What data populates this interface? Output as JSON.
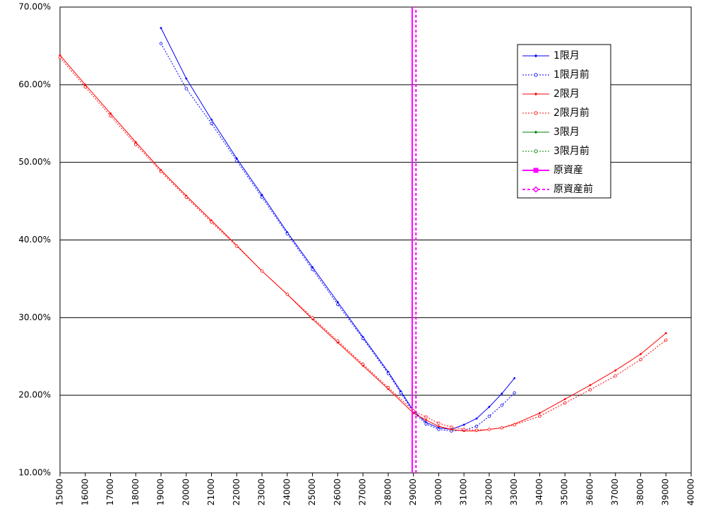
{
  "chart_data": {
    "type": "line",
    "xlim": [
      15000,
      40000
    ],
    "xticks": [
      15000,
      16000,
      17000,
      18000,
      19000,
      20000,
      21000,
      22000,
      23000,
      24000,
      25000,
      26000,
      27000,
      28000,
      29000,
      30000,
      31000,
      32000,
      33000,
      34000,
      35000,
      36000,
      37000,
      38000,
      39000,
      40000
    ],
    "ylim": [
      10,
      70
    ],
    "yticks": [
      {
        "value": 10,
        "label": "10.00%"
      },
      {
        "value": 20,
        "label": "20.00%"
      },
      {
        "value": 30,
        "label": "30.00%"
      },
      {
        "value": 40,
        "label": "40.00%"
      },
      {
        "value": 50,
        "label": "50.00%"
      },
      {
        "value": 60,
        "label": "60.00%"
      },
      {
        "value": 70,
        "label": "70.00%"
      }
    ],
    "grid": true,
    "legend": "upper right",
    "series": [
      {
        "name": "1限月",
        "color": "#0000ff",
        "dash": false,
        "marker": "diamond",
        "x": [
          19000,
          20000,
          21000,
          22000,
          23000,
          24000,
          25000,
          26000,
          27000,
          28000,
          28500,
          29000,
          29500,
          30000,
          30500,
          31000,
          31500,
          32000,
          32500,
          33000
        ],
        "values": [
          67.3,
          60.8,
          55.5,
          50.5,
          45.8,
          41.0,
          36.5,
          32.0,
          27.5,
          23.0,
          20.5,
          18.0,
          16.5,
          15.8,
          15.6,
          16.2,
          17.0,
          18.5,
          20.2,
          22.2
        ]
      },
      {
        "name": "1限月前",
        "color": "#0000ff",
        "dash": true,
        "marker": "circle",
        "x": [
          19000,
          20000,
          21000,
          22000,
          23000,
          24000,
          25000,
          26000,
          27000,
          28000,
          28500,
          29000,
          29500,
          30000,
          30500,
          31000,
          31500,
          32000,
          32500,
          33000
        ],
        "values": [
          65.3,
          59.5,
          55.0,
          50.2,
          45.5,
          40.8,
          36.2,
          31.7,
          27.3,
          22.8,
          20.3,
          17.8,
          16.3,
          15.6,
          15.4,
          15.5,
          16.0,
          17.3,
          18.7,
          20.3
        ]
      },
      {
        "name": "2限月",
        "color": "#ff0000",
        "dash": false,
        "marker": "diamond",
        "x": [
          15000,
          16000,
          17000,
          18000,
          19000,
          20000,
          21000,
          22000,
          23000,
          24000,
          25000,
          26000,
          27000,
          28000,
          29000,
          29500,
          30000,
          30500,
          31000,
          31500,
          32000,
          32500,
          33000,
          34000,
          35000,
          36000,
          37000,
          38000,
          39000
        ],
        "values": [
          63.8,
          60.0,
          56.3,
          52.6,
          49.0,
          45.7,
          42.5,
          39.3,
          36.0,
          33.0,
          29.8,
          26.8,
          23.8,
          20.8,
          17.7,
          16.8,
          16.0,
          15.6,
          15.4,
          15.4,
          15.6,
          15.8,
          16.3,
          17.7,
          19.5,
          21.3,
          23.2,
          25.3,
          28.0
        ]
      },
      {
        "name": "2限月前",
        "color": "#ff0000",
        "dash": true,
        "marker": "circle",
        "x": [
          15000,
          16000,
          17000,
          18000,
          19000,
          20000,
          21000,
          22000,
          23000,
          24000,
          25000,
          26000,
          27000,
          28000,
          29000,
          29500,
          30000,
          30500,
          31000,
          31500,
          32000,
          32500,
          33000,
          34000,
          35000,
          36000,
          37000,
          38000,
          39000
        ],
        "values": [
          63.5,
          59.7,
          56.0,
          52.3,
          48.8,
          45.5,
          42.3,
          39.2,
          36.0,
          33.0,
          30.0,
          27.0,
          24.0,
          21.0,
          18.0,
          17.2,
          16.4,
          15.9,
          15.6,
          15.5,
          15.6,
          15.8,
          16.2,
          17.3,
          19.0,
          20.7,
          22.5,
          24.6,
          27.1
        ]
      },
      {
        "name": "3限月",
        "color": "#008000",
        "dash": false,
        "marker": "diamond",
        "x": [],
        "values": []
      },
      {
        "name": "3限月前",
        "color": "#008000",
        "dash": true,
        "marker": "circle",
        "x": [],
        "values": []
      },
      {
        "name": "原資産",
        "color": "#ff00ff",
        "dash": false,
        "marker": "square",
        "x": [
          28950,
          28950
        ],
        "values": [
          10,
          70
        ]
      },
      {
        "name": "原資産前",
        "color": "#ff00ff",
        "dash": true,
        "marker": "open-diamond",
        "x": [
          29100,
          29100
        ],
        "values": [
          10,
          70
        ]
      }
    ]
  }
}
